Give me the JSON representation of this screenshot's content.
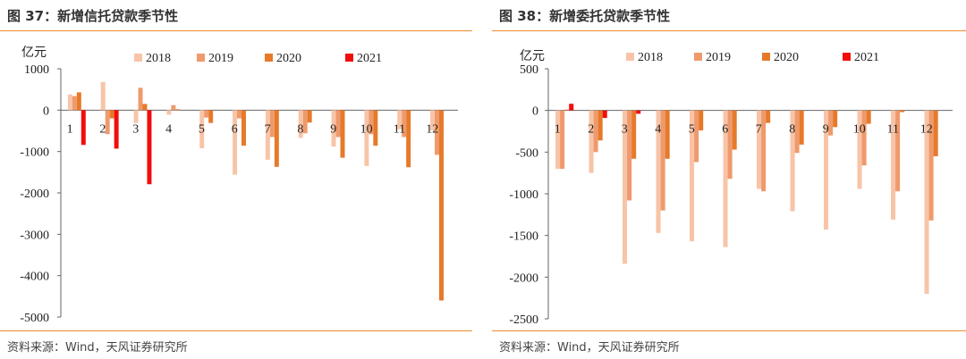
{
  "colors": {
    "2018": "#f8c4a8",
    "2019": "#ef9a6c",
    "2020": "#e67a2a",
    "2021": "#f20d0d",
    "rule": "#f08c2e"
  },
  "charts": [
    {
      "title": "图 37：新增信托贷款季节性",
      "source": "资料来源：Wind，天风证券研究所",
      "chart_data": {
        "type": "bar",
        "unit_label": "亿元",
        "categories": [
          "1",
          "2",
          "3",
          "4",
          "5",
          "6",
          "7",
          "8",
          "9",
          "10",
          "11",
          "12"
        ],
        "ylim": [
          -5000,
          1000
        ],
        "yticks": [
          1000,
          0,
          -1000,
          -2000,
          -3000,
          -4000,
          -5000
        ],
        "ytick_labels": [
          "1000",
          "0",
          "-1000",
          "-2000",
          "-3000",
          "-4000",
          "-5000"
        ],
        "series": [
          {
            "name": "2018",
            "values": [
              380,
              680,
              -310,
              -110,
              -920,
              -1560,
              -1200,
              -670,
              -880,
              -1350,
              -460,
              -490
            ]
          },
          {
            "name": "2019",
            "values": [
              340,
              -580,
              540,
              120,
              -180,
              -200,
              -650,
              -560,
              -650,
              -580,
              -650,
              -1080
            ]
          },
          {
            "name": "2020",
            "values": [
              430,
              -200,
              150,
              20,
              -310,
              -860,
              -1370,
              -300,
              -1150,
              -860,
              -1380,
              -4600
            ]
          },
          {
            "name": "2021",
            "values": [
              -840,
              -930,
              -1790,
              null,
              null,
              null,
              null,
              null,
              null,
              null,
              null,
              null
            ]
          }
        ]
      }
    },
    {
      "title": "图 38：新增委托贷款季节性",
      "source": "资料来源：Wind，天风证券研究所",
      "chart_data": {
        "type": "bar",
        "unit_label": "亿元",
        "categories": [
          "1",
          "2",
          "3",
          "4",
          "5",
          "6",
          "7",
          "8",
          "9",
          "10",
          "11",
          "12"
        ],
        "ylim": [
          -2500,
          500
        ],
        "yticks": [
          500,
          0,
          -500,
          -1000,
          -1500,
          -2000,
          -2500
        ],
        "ytick_labels": [
          "500",
          "0",
          "-500",
          "-1000",
          "-1500",
          "-2000",
          "-2500"
        ],
        "series": [
          {
            "name": "2018",
            "values": [
              -700,
              -750,
              -1840,
              -1470,
              -1570,
              -1640,
              -940,
              -1210,
              -1430,
              -940,
              -1310,
              -2200
            ]
          },
          {
            "name": "2019",
            "values": [
              -700,
              -500,
              -1080,
              -1200,
              -620,
              -820,
              -970,
              -510,
              -300,
              -660,
              -970,
              -1320
            ]
          },
          {
            "name": "2020",
            "values": [
              10,
              -360,
              -580,
              -580,
              -240,
              -470,
              -150,
              -410,
              -200,
              -160,
              -20,
              -550
            ]
          },
          {
            "name": "2021",
            "values": [
              80,
              -90,
              -40,
              null,
              null,
              null,
              null,
              null,
              null,
              null,
              null,
              null
            ]
          }
        ]
      }
    }
  ]
}
